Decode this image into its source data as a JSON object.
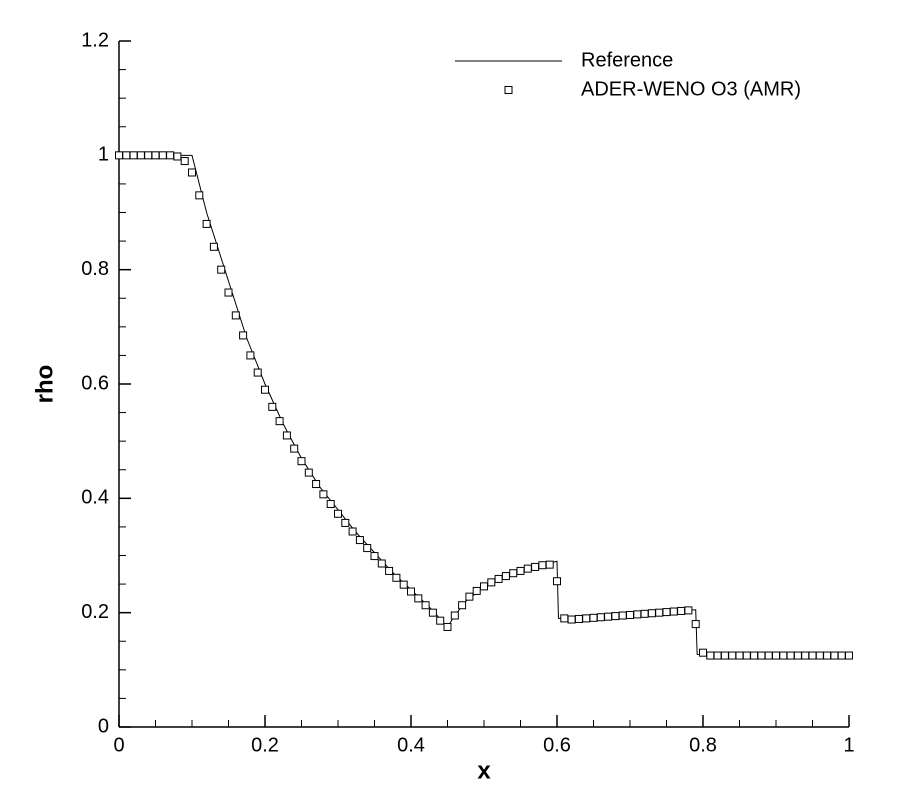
{
  "chart_data": {
    "type": "line_scatter",
    "xlabel": "x",
    "ylabel": "rho",
    "xlim": [
      0,
      1
    ],
    "ylim": [
      0,
      1.2
    ],
    "xticks": [
      0,
      0.2,
      0.4,
      0.6,
      0.8,
      1
    ],
    "yticks": [
      0,
      0.2,
      0.4,
      0.6,
      0.8,
      1,
      1.2
    ],
    "xticks_minor": [
      0.05,
      0.1,
      0.15,
      0.25,
      0.3,
      0.35,
      0.45,
      0.5,
      0.55,
      0.65,
      0.7,
      0.75,
      0.85,
      0.9,
      0.95
    ],
    "yticks_minor": [
      0.05,
      0.1,
      0.15,
      0.25,
      0.3,
      0.35,
      0.45,
      0.5,
      0.55,
      0.65,
      0.7,
      0.75,
      0.85,
      0.9,
      0.95,
      1.05,
      1.1,
      1.15
    ],
    "legend": "upper right",
    "series": [
      {
        "name": "Reference",
        "color": "#000000",
        "style": "line",
        "x": [
          0,
          0.1,
          0.11,
          0.12,
          0.13,
          0.15,
          0.175,
          0.2,
          0.225,
          0.25,
          0.275,
          0.3,
          0.325,
          0.35,
          0.375,
          0.4,
          0.425,
          0.45,
          0.46,
          0.475,
          0.5,
          0.525,
          0.55,
          0.575,
          0.6,
          0.602,
          0.62,
          0.7,
          0.79,
          0.792,
          1
        ],
        "values": [
          1,
          1,
          0.95,
          0.9,
          0.86,
          0.78,
          0.68,
          0.6,
          0.53,
          0.47,
          0.42,
          0.38,
          0.34,
          0.305,
          0.27,
          0.24,
          0.21,
          0.175,
          0.195,
          0.22,
          0.245,
          0.262,
          0.273,
          0.282,
          0.29,
          0.19,
          0.19,
          0.197,
          0.205,
          0.127,
          0.125
        ]
      },
      {
        "name": "ADER-WENO O3 (AMR)",
        "color": "#000000",
        "style": "marker",
        "x": [
          0,
          0.01,
          0.02,
          0.03,
          0.04,
          0.05,
          0.06,
          0.07,
          0.08,
          0.09,
          0.1,
          0.11,
          0.12,
          0.13,
          0.14,
          0.15,
          0.16,
          0.17,
          0.18,
          0.19,
          0.2,
          0.21,
          0.22,
          0.23,
          0.24,
          0.25,
          0.26,
          0.27,
          0.28,
          0.29,
          0.3,
          0.31,
          0.32,
          0.33,
          0.34,
          0.35,
          0.36,
          0.37,
          0.38,
          0.39,
          0.4,
          0.41,
          0.42,
          0.43,
          0.44,
          0.45,
          0.46,
          0.47,
          0.48,
          0.49,
          0.5,
          0.51,
          0.52,
          0.53,
          0.54,
          0.55,
          0.56,
          0.57,
          0.58,
          0.59,
          0.6,
          0.61,
          0.62,
          0.63,
          0.64,
          0.65,
          0.66,
          0.67,
          0.68,
          0.69,
          0.7,
          0.71,
          0.72,
          0.73,
          0.74,
          0.75,
          0.76,
          0.77,
          0.78,
          0.79,
          0.8,
          0.81,
          0.82,
          0.83,
          0.84,
          0.85,
          0.86,
          0.87,
          0.88,
          0.89,
          0.9,
          0.91,
          0.92,
          0.93,
          0.94,
          0.95,
          0.96,
          0.97,
          0.98,
          0.99,
          1
        ],
        "values": [
          1,
          1,
          1,
          1,
          1,
          1,
          1,
          1,
          0.998,
          0.99,
          0.97,
          0.93,
          0.88,
          0.84,
          0.8,
          0.76,
          0.72,
          0.685,
          0.65,
          0.62,
          0.59,
          0.56,
          0.535,
          0.51,
          0.487,
          0.465,
          0.445,
          0.425,
          0.407,
          0.39,
          0.373,
          0.357,
          0.342,
          0.327,
          0.313,
          0.299,
          0.286,
          0.273,
          0.261,
          0.249,
          0.237,
          0.225,
          0.213,
          0.2,
          0.186,
          0.175,
          0.195,
          0.213,
          0.228,
          0.238,
          0.246,
          0.253,
          0.259,
          0.264,
          0.269,
          0.273,
          0.277,
          0.28,
          0.283,
          0.284,
          0.255,
          0.19,
          0.188,
          0.189,
          0.19,
          0.191,
          0.192,
          0.193,
          0.194,
          0.195,
          0.196,
          0.197,
          0.198,
          0.199,
          0.2,
          0.201,
          0.202,
          0.203,
          0.204,
          0.18,
          0.13,
          0.125,
          0.125,
          0.125,
          0.125,
          0.125,
          0.125,
          0.125,
          0.125,
          0.125,
          0.125,
          0.125,
          0.125,
          0.125,
          0.125,
          0.125,
          0.125,
          0.125,
          0.125,
          0.125,
          0.125
        ]
      }
    ]
  }
}
